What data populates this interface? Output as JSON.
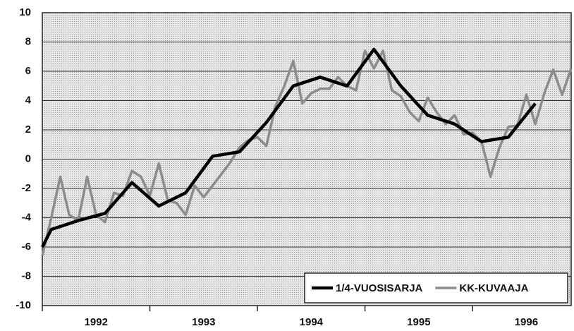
{
  "chart_data": {
    "type": "line",
    "xlim": [
      1992,
      1996.917
    ],
    "xticks": [
      1992,
      1993,
      1994,
      1995,
      1996
    ],
    "ylim": [
      -10,
      10
    ],
    "yticks": [
      -10,
      -8,
      -6,
      -4,
      -2,
      0,
      2,
      4,
      6,
      8,
      10
    ],
    "grid": true,
    "legend": "lower right",
    "series": [
      {
        "name": "1/4-VUOSISARJA",
        "color": "#000000",
        "x": [
          1992,
          1992.083,
          1992.333,
          1992.583,
          1992.833,
          1993.083,
          1993.333,
          1993.583,
          1993.833,
          1994.083,
          1994.333,
          1994.583,
          1994.833,
          1995.083,
          1995.333,
          1995.583,
          1995.833,
          1996.083,
          1996.333,
          1996.583
        ],
        "values": [
          -6.0,
          -4.8,
          -4.2,
          -3.7,
          -1.6,
          -3.2,
          -2.3,
          0.2,
          0.5,
          2.5,
          5.0,
          5.6,
          5.0,
          7.5,
          5.0,
          3.0,
          2.4,
          1.2,
          1.5,
          3.8
        ]
      },
      {
        "name": "KK-KUVAAJA",
        "color": "#8c8c8c",
        "x": [
          1992,
          1992.083,
          1992.167,
          1992.25,
          1992.333,
          1992.417,
          1992.5,
          1992.583,
          1992.667,
          1992.75,
          1992.833,
          1992.917,
          1993,
          1993.083,
          1993.167,
          1993.25,
          1993.333,
          1993.417,
          1993.5,
          1993.583,
          1993.667,
          1993.75,
          1993.833,
          1993.917,
          1994,
          1994.083,
          1994.167,
          1994.25,
          1994.333,
          1994.417,
          1994.5,
          1994.583,
          1994.667,
          1994.75,
          1994.833,
          1994.917,
          1995,
          1995.083,
          1995.167,
          1995.25,
          1995.333,
          1995.417,
          1995.5,
          1995.583,
          1995.667,
          1995.75,
          1995.833,
          1995.917,
          1996,
          1996.083,
          1996.167,
          1996.25,
          1996.333,
          1996.417,
          1996.5,
          1996.583,
          1996.667,
          1996.75,
          1996.833,
          1996.917
        ],
        "values": [
          -6.6,
          -4.0,
          -1.2,
          -3.8,
          -4.2,
          -1.2,
          -3.8,
          -4.3,
          -2.3,
          -2.5,
          -0.8,
          -1.2,
          -2.5,
          -0.3,
          -2.8,
          -3.0,
          -3.8,
          -1.8,
          -2.6,
          -1.8,
          -1.0,
          -0.2,
          0.8,
          1.3,
          1.5,
          0.9,
          3.6,
          5.0,
          6.7,
          3.8,
          4.5,
          4.8,
          4.8,
          5.6,
          5.0,
          4.7,
          7.4,
          6.2,
          7.4,
          4.7,
          4.3,
          3.2,
          2.6,
          4.2,
          3.2,
          2.4,
          3.0,
          1.7,
          1.8,
          1.2,
          -1.2,
          0.8,
          2.2,
          2.3,
          4.4,
          2.4,
          4.5,
          6.1,
          4.4,
          6.2
        ]
      }
    ]
  }
}
